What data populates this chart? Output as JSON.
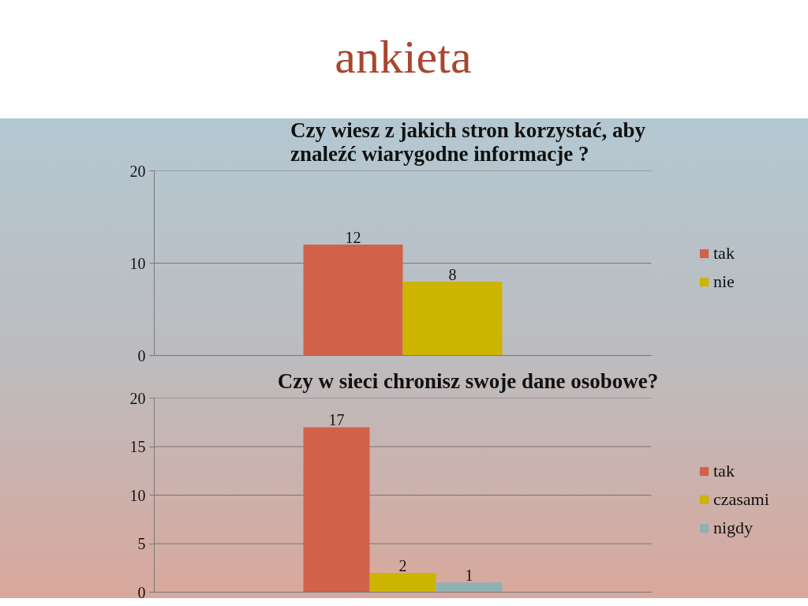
{
  "chart_data": [
    {
      "type": "bar",
      "annotations": [
        "ankieta"
      ],
      "title": "Czy wiesz z jakich stron korzystać, aby znaleźć wiarygodne informacje ?",
      "categories": [
        null
      ],
      "series": [
        {
          "name": "tak",
          "color": "#d2614a",
          "values": [
            12
          ]
        },
        {
          "name": "nie",
          "color": "#cdb400",
          "values": [
            8
          ]
        }
      ],
      "ylim": [
        0,
        20
      ],
      "yticks": [
        0,
        10,
        20
      ],
      "grid": "y",
      "legend": "right",
      "data_labels": true
    },
    {
      "type": "bar",
      "title": "Czy w sieci chronisz swoje dane osobowe?",
      "categories": [
        null
      ],
      "series": [
        {
          "name": "tak",
          "color": "#d2614a",
          "values": [
            17
          ]
        },
        {
          "name": "czasami",
          "color": "#cdb400",
          "values": [
            2
          ]
        },
        {
          "name": "nigdy",
          "color": "#8fb1b3",
          "values": [
            1
          ]
        }
      ],
      "ylim": [
        0,
        20
      ],
      "yticks": [
        0,
        5,
        10,
        15,
        20
      ],
      "grid": "y",
      "legend": "right",
      "data_labels": true
    }
  ]
}
